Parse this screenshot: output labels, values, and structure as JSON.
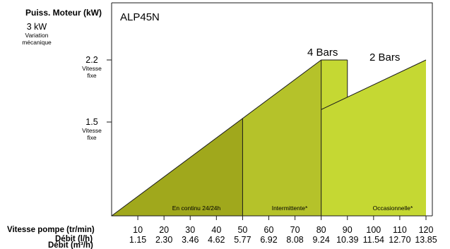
{
  "chart_data": {
    "type": "area",
    "model": "ALP45N",
    "y_axis": {
      "title": "Puiss. Moteur (kW)",
      "ticks": [
        {
          "value": 3,
          "label": "3 kW",
          "sub": [
            "Variation",
            "mécanique"
          ]
        },
        {
          "value": 2.2,
          "label": "2.2",
          "sub": [
            "Vitesse",
            "fixe"
          ]
        },
        {
          "value": 1.5,
          "label": "1.5",
          "sub": [
            "Vitesse",
            "fixe"
          ]
        }
      ]
    },
    "x_axis": {
      "speed_label": "Vitesse pompe (tr/min)",
      "flow_label_overlapped": "Débit (l/h)",
      "flow_label": "Débit (m³/h)",
      "speed_ticks": [
        10,
        20,
        30,
        40,
        50,
        60,
        70,
        80,
        90,
        100,
        110,
        120
      ],
      "flow_ticks": [
        "1.15",
        "2.30",
        "3.46",
        "4.62",
        "5.77",
        "6.92",
        "8.08",
        "9.24",
        "10.39",
        "11.54",
        "12.70",
        "13.85"
      ],
      "range": [
        0,
        120
      ]
    },
    "series": [
      {
        "name": "4 Bars",
        "points": [
          [
            0,
            0
          ],
          [
            80,
            2.2
          ],
          [
            90,
            2.2
          ]
        ]
      },
      {
        "name": "2 Bars",
        "points": [
          [
            0,
            0
          ],
          [
            80,
            1.5
          ],
          [
            120,
            2.2
          ]
        ]
      }
    ],
    "zones": [
      {
        "label": "En continu 24/24h",
        "from": 0,
        "to": 50,
        "color": "#a0a81c"
      },
      {
        "label": "Intermittente*",
        "from": 50,
        "to": 80,
        "color": "#b5c22a"
      },
      {
        "label": "Occasionnelle*",
        "from": 80,
        "to": 120,
        "color": "#c5d833"
      }
    ]
  }
}
